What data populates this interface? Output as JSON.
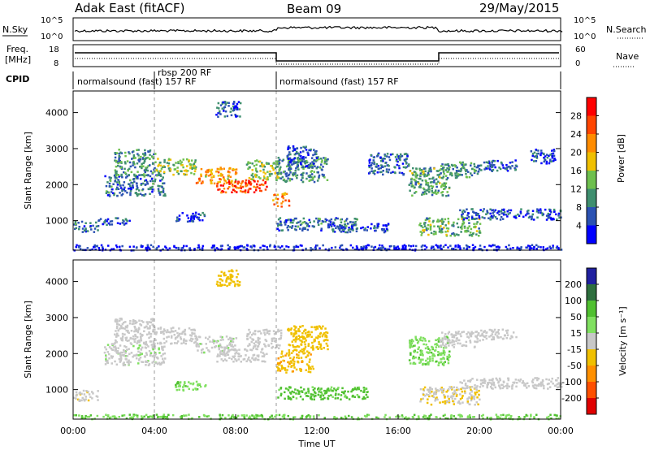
{
  "header": {
    "title": "Adak East (fitACF)",
    "beam": "Beam 09",
    "date": "29/May/2015"
  },
  "noise_panel": {
    "left_label": "N.Sky",
    "right_label": "N.Search",
    "left_ticks": [
      "10^5",
      "10^0"
    ],
    "right_ticks": [
      "10^5",
      "10^0"
    ]
  },
  "freq_panel": {
    "left_label_1": "Freq.",
    "left_label_2": "[MHz]",
    "left_ticks": [
      "18",
      "8"
    ],
    "right_label": "Nave",
    "right_ticks": [
      "60",
      "0"
    ]
  },
  "cpid_panel": {
    "label": "CPID",
    "segments": [
      {
        "text": "normalsound (fast) 157 RF"
      },
      {
        "text": "rbsp 200 RF"
      },
      {
        "text": "normalsound (fast) 157 RF"
      }
    ]
  },
  "colors": {
    "power": [
      "#0000ff",
      "#2b52b3",
      "#3f8f6f",
      "#6ec04e",
      "#f0c000",
      "#ff8c00",
      "#ff4500",
      "#ff0000"
    ],
    "velocity": [
      "#2020a0",
      "#2e6f3e",
      "#50c030",
      "#80e060",
      "#c8c8c8",
      "#f0c000",
      "#ff9000",
      "#ff5000",
      "#e00000"
    ]
  },
  "chart_data": [
    {
      "type": "heatmap",
      "name": "power",
      "ylabel": "Slant Range [km]",
      "yticks": [
        1000,
        2000,
        3000,
        4000
      ],
      "ylim": [
        180,
        4600
      ],
      "xlim": [
        0,
        24
      ],
      "colorbar_label": "Power [dB]",
      "colorbar_ticks": [
        4,
        8,
        12,
        16,
        20,
        24,
        28
      ],
      "colorbar_range": [
        0,
        32
      ],
      "regions": [
        {
          "t": [
            0.0,
            1.2
          ],
          "r": [
            700,
            1000
          ],
          "value": 8
        },
        {
          "t": [
            1.2,
            2.8
          ],
          "r": [
            900,
            1100
          ],
          "value": 6
        },
        {
          "t": [
            1.5,
            4.5
          ],
          "r": [
            1700,
            2300
          ],
          "value": 8
        },
        {
          "t": [
            2.0,
            4.0
          ],
          "r": [
            2300,
            3000
          ],
          "value": 10
        },
        {
          "t": [
            4.0,
            6.0
          ],
          "r": [
            2300,
            2750
          ],
          "value": 14
        },
        {
          "t": [
            6.0,
            8.0
          ],
          "r": [
            2050,
            2500
          ],
          "value": 20
        },
        {
          "t": [
            7.0,
            9.5
          ],
          "r": [
            1800,
            2150
          ],
          "value": 27
        },
        {
          "t": [
            8.5,
            10.2
          ],
          "r": [
            2150,
            2700
          ],
          "value": 14
        },
        {
          "t": [
            9.8,
            10.6
          ],
          "r": [
            1400,
            1800
          ],
          "value": 22
        },
        {
          "t": [
            10.0,
            12.5
          ],
          "r": [
            2100,
            2800
          ],
          "value": 10
        },
        {
          "t": [
            10.5,
            12.0
          ],
          "r": [
            2500,
            3100
          ],
          "value": 6
        },
        {
          "t": [
            7.0,
            8.2
          ],
          "r": [
            3900,
            4350
          ],
          "value": 6
        },
        {
          "t": [
            5.0,
            6.5
          ],
          "r": [
            1000,
            1250
          ],
          "value": 4
        },
        {
          "t": [
            10.0,
            14.0
          ],
          "r": [
            750,
            1100
          ],
          "value": 8
        },
        {
          "t": [
            12.5,
            15.5
          ],
          "r": [
            700,
            950
          ],
          "value": 6
        },
        {
          "t": [
            14.5,
            16.5
          ],
          "r": [
            2300,
            2900
          ],
          "value": 6
        },
        {
          "t": [
            16.5,
            18.5
          ],
          "r": [
            1700,
            2500
          ],
          "value": 12
        },
        {
          "t": [
            18.0,
            20.0
          ],
          "r": [
            2200,
            2650
          ],
          "value": 10
        },
        {
          "t": [
            20.0,
            21.8
          ],
          "r": [
            2400,
            2700
          ],
          "value": 6
        },
        {
          "t": [
            17.0,
            20.0
          ],
          "r": [
            600,
            1100
          ],
          "value": 12
        },
        {
          "t": [
            19.0,
            24.0
          ],
          "r": [
            1050,
            1350
          ],
          "value": 6
        },
        {
          "t": [
            22.5,
            23.8
          ],
          "r": [
            2600,
            3000
          ],
          "value": 5
        },
        {
          "t": [
            0.0,
            24.0
          ],
          "r": [
            200,
            350
          ],
          "value": 3
        }
      ]
    },
    {
      "type": "heatmap",
      "name": "velocity",
      "ylabel": "Slant Range [km]",
      "yticks": [
        1000,
        2000,
        3000,
        4000
      ],
      "ylim": [
        180,
        4600
      ],
      "xlim": [
        0,
        24
      ],
      "xticks": [
        "00:00",
        "04:00",
        "08:00",
        "12:00",
        "16:00",
        "20:00",
        "00:00"
      ],
      "xlabel": "Time UT",
      "colorbar_label": "Velocity [m s⁻¹]",
      "colorbar_ticks": [
        "200",
        "100",
        "50",
        "15",
        "-15",
        "-50",
        "-100",
        "-200"
      ],
      "colorbar_range": [
        -250,
        250
      ],
      "regions": [
        {
          "t": [
            0.0,
            1.2
          ],
          "r": [
            700,
            1000
          ],
          "v": -5
        },
        {
          "t": [
            1.5,
            4.5
          ],
          "r": [
            1700,
            2300
          ],
          "v": 5
        },
        {
          "t": [
            2.0,
            4.0
          ],
          "r": [
            2300,
            3000
          ],
          "v": 0
        },
        {
          "t": [
            4.0,
            6.0
          ],
          "r": [
            2300,
            2750
          ],
          "v": 0
        },
        {
          "t": [
            6.0,
            8.0
          ],
          "r": [
            2050,
            2500
          ],
          "v": 5
        },
        {
          "t": [
            7.0,
            9.5
          ],
          "r": [
            1800,
            2150
          ],
          "v": 0
        },
        {
          "t": [
            8.5,
            10.2
          ],
          "r": [
            2150,
            2700
          ],
          "v": 0
        },
        {
          "t": [
            10.0,
            11.8
          ],
          "r": [
            1500,
            2100
          ],
          "v": -40
        },
        {
          "t": [
            10.5,
            12.5
          ],
          "r": [
            2100,
            2800
          ],
          "v": -30
        },
        {
          "t": [
            7.0,
            8.2
          ],
          "r": [
            3900,
            4350
          ],
          "v": -30
        },
        {
          "t": [
            5.0,
            6.5
          ],
          "r": [
            1000,
            1250
          ],
          "v": 40
        },
        {
          "t": [
            10.0,
            14.5
          ],
          "r": [
            750,
            1100
          ],
          "v": 60
        },
        {
          "t": [
            16.5,
            18.5
          ],
          "r": [
            1700,
            2500
          ],
          "v": 40
        },
        {
          "t": [
            18.0,
            20.0
          ],
          "r": [
            2200,
            2650
          ],
          "v": 0
        },
        {
          "t": [
            20.0,
            21.8
          ],
          "r": [
            2400,
            2700
          ],
          "v": 0
        },
        {
          "t": [
            17.0,
            20.0
          ],
          "r": [
            600,
            1100
          ],
          "v": -10
        },
        {
          "t": [
            19.0,
            24.0
          ],
          "r": [
            1050,
            1350
          ],
          "v": 0
        },
        {
          "t": [
            0.0,
            24.0
          ],
          "r": [
            200,
            330
          ],
          "v": 45
        }
      ]
    }
  ]
}
